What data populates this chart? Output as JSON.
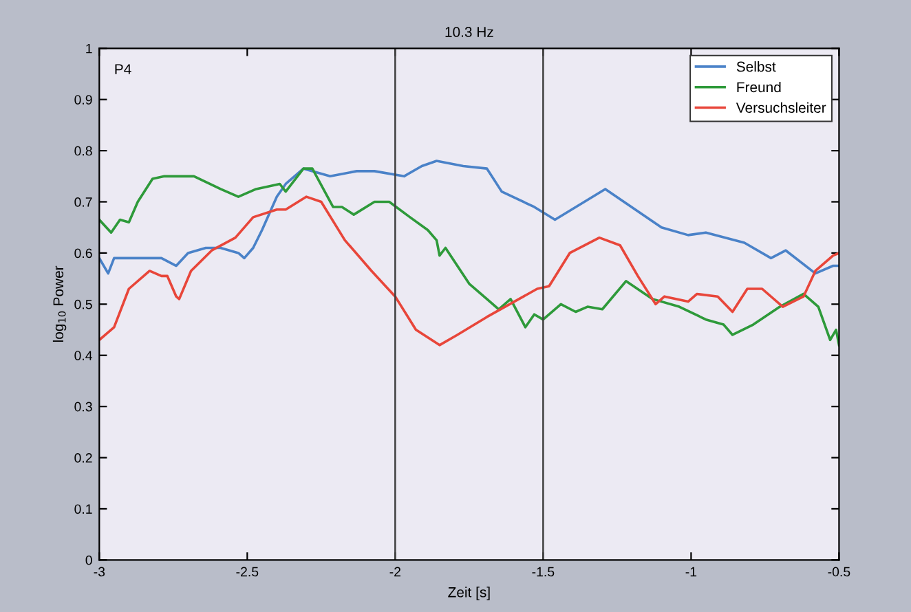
{
  "chart_data": {
    "type": "line",
    "title": "10.3 Hz",
    "xlabel": "Zeit [s]",
    "ylabel": "log$_{10}$ Power",
    "annotations": [
      "P4"
    ],
    "xlim": [
      -3,
      -0.5
    ],
    "xticks": [
      -3,
      -2.5,
      -2,
      -1.5,
      -1,
      -0.5
    ],
    "ylim": [
      0,
      1
    ],
    "yticks": [
      0,
      0.1,
      0.2,
      0.3,
      0.4,
      0.5,
      0.6,
      0.7,
      0.8,
      0.9,
      1
    ],
    "grid": false,
    "legend": "top right",
    "line_style": "solid",
    "marker": "none",
    "ref_lines": [
      {
        "axis": "x",
        "value": -2,
        "color": "#404040"
      },
      {
        "axis": "x",
        "value": -1.5,
        "color": "#404040"
      }
    ],
    "series": [
      {
        "name": "Selbst",
        "color": "#4a82c8",
        "x": [
          -3.0,
          -2.97,
          -2.95,
          -2.86,
          -2.79,
          -2.74,
          -2.7,
          -2.64,
          -2.59,
          -2.53,
          -2.51,
          -2.48,
          -2.45,
          -2.4,
          -2.37,
          -2.31,
          -2.22,
          -2.13,
          -2.07,
          -1.97,
          -1.91,
          -1.86,
          -1.77,
          -1.69,
          -1.64,
          -1.53,
          -1.46,
          -1.29,
          -1.1,
          -1.01,
          -0.95,
          -0.82,
          -0.73,
          -0.68,
          -0.58,
          -0.52,
          -0.5
        ],
        "values": [
          0.59,
          0.56,
          0.59,
          0.59,
          0.59,
          0.575,
          0.6,
          0.61,
          0.61,
          0.6,
          0.59,
          0.61,
          0.645,
          0.71,
          0.735,
          0.765,
          0.75,
          0.76,
          0.76,
          0.75,
          0.77,
          0.78,
          0.77,
          0.765,
          0.72,
          0.69,
          0.665,
          0.725,
          0.65,
          0.635,
          0.64,
          0.62,
          0.59,
          0.605,
          0.56,
          0.575,
          0.575
        ]
      },
      {
        "name": "Freund",
        "color": "#2e9a3a",
        "x": [
          -3.0,
          -2.96,
          -2.93,
          -2.9,
          -2.87,
          -2.82,
          -2.78,
          -2.68,
          -2.59,
          -2.53,
          -2.47,
          -2.39,
          -2.37,
          -2.31,
          -2.28,
          -2.21,
          -2.18,
          -2.14,
          -2.07,
          -2.02,
          -1.95,
          -1.89,
          -1.86,
          -1.85,
          -1.83,
          -1.75,
          -1.69,
          -1.65,
          -1.61,
          -1.56,
          -1.53,
          -1.5,
          -1.44,
          -1.39,
          -1.35,
          -1.3,
          -1.22,
          -1.13,
          -1.04,
          -0.95,
          -0.89,
          -0.86,
          -0.79,
          -0.7,
          -0.62,
          -0.57,
          -0.53,
          -0.51,
          -0.5
        ],
        "values": [
          0.665,
          0.64,
          0.665,
          0.66,
          0.7,
          0.745,
          0.75,
          0.75,
          0.725,
          0.71,
          0.725,
          0.735,
          0.72,
          0.765,
          0.765,
          0.69,
          0.69,
          0.675,
          0.7,
          0.7,
          0.67,
          0.645,
          0.625,
          0.595,
          0.61,
          0.54,
          0.51,
          0.49,
          0.51,
          0.455,
          0.48,
          0.47,
          0.5,
          0.485,
          0.495,
          0.49,
          0.545,
          0.51,
          0.495,
          0.47,
          0.46,
          0.44,
          0.46,
          0.495,
          0.52,
          0.495,
          0.43,
          0.45,
          0.42
        ]
      },
      {
        "name": "Versuchsleiter",
        "color": "#e8463a",
        "x": [
          -3.0,
          -2.95,
          -2.9,
          -2.83,
          -2.79,
          -2.77,
          -2.74,
          -2.73,
          -2.69,
          -2.62,
          -2.54,
          -2.48,
          -2.4,
          -2.37,
          -2.3,
          -2.25,
          -2.17,
          -2.08,
          -2.0,
          -1.93,
          -1.85,
          -1.79,
          -1.69,
          -1.52,
          -1.48,
          -1.41,
          -1.31,
          -1.24,
          -1.18,
          -1.12,
          -1.09,
          -1.01,
          -0.98,
          -0.91,
          -0.86,
          -0.81,
          -0.76,
          -0.69,
          -0.62,
          -0.58,
          -0.52,
          -0.5
        ],
        "values": [
          0.43,
          0.455,
          0.53,
          0.565,
          0.555,
          0.555,
          0.515,
          0.51,
          0.565,
          0.605,
          0.63,
          0.67,
          0.685,
          0.685,
          0.71,
          0.7,
          0.625,
          0.565,
          0.515,
          0.45,
          0.42,
          0.44,
          0.475,
          0.53,
          0.535,
          0.6,
          0.63,
          0.615,
          0.555,
          0.5,
          0.515,
          0.505,
          0.52,
          0.515,
          0.485,
          0.53,
          0.53,
          0.495,
          0.515,
          0.565,
          0.595,
          0.6
        ]
      }
    ]
  }
}
